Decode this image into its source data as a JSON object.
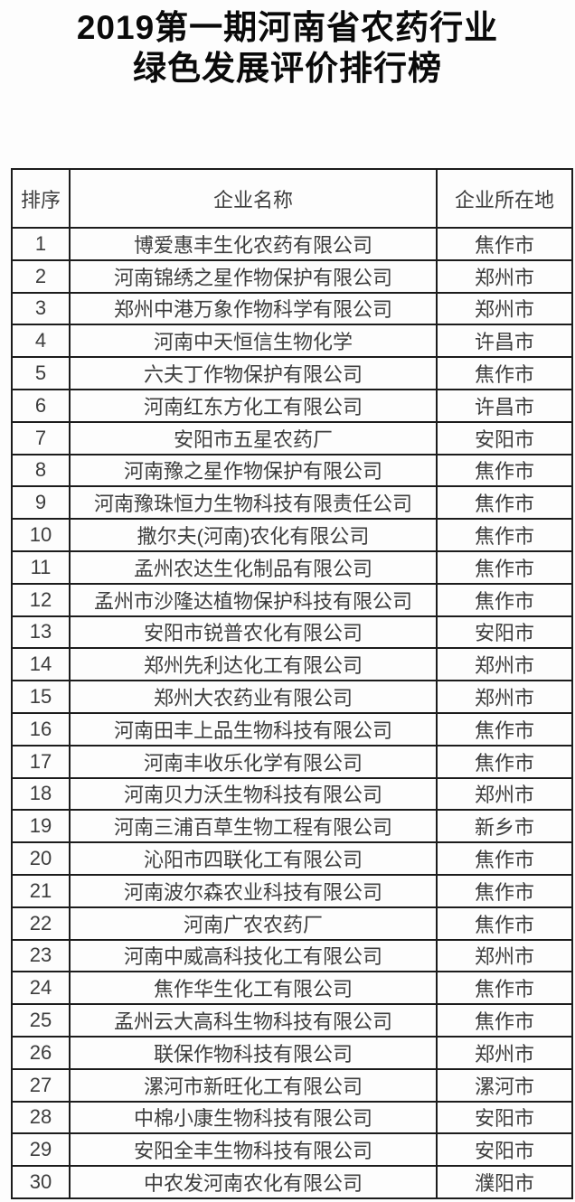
{
  "page": {
    "title_line1": "2019第一期河南省农药行业",
    "title_line2": "绿色发展评价排行榜"
  },
  "colors": {
    "border": "#1c1c1c",
    "text": "#3d3d3d",
    "title": "#0a0a0a",
    "background": "#fdfdfd"
  },
  "table": {
    "columns": [
      "排序",
      "企业名称",
      "企业所在地"
    ],
    "rows": [
      {
        "rank": "1",
        "name": "博爱惠丰生化农药有限公司",
        "city": "焦作市"
      },
      {
        "rank": "2",
        "name": "河南锦绣之星作物保护有限公司",
        "city": "郑州市"
      },
      {
        "rank": "3",
        "name": "郑州中港万象作物科学有限公司",
        "city": "郑州市"
      },
      {
        "rank": "4",
        "name": "河南中天恒信生物化学",
        "city": "许昌市"
      },
      {
        "rank": "5",
        "name": "六夫丁作物保护有限公司",
        "city": "焦作市"
      },
      {
        "rank": "6",
        "name": "河南红东方化工有限公司",
        "city": "许昌市"
      },
      {
        "rank": "7",
        "name": "安阳市五星农药厂",
        "city": "安阳市"
      },
      {
        "rank": "8",
        "name": "河南豫之星作物保护有限公司",
        "city": "焦作市"
      },
      {
        "rank": "9",
        "name": "河南豫珠恒力生物科技有限责任公司",
        "city": "焦作市"
      },
      {
        "rank": "10",
        "name": "撒尔夫(河南)农化有限公司",
        "city": "焦作市"
      },
      {
        "rank": "11",
        "name": "孟州农达生化制品有限公司",
        "city": "焦作市"
      },
      {
        "rank": "12",
        "name": "孟州市沙隆达植物保护科技有限公司",
        "city": "焦作市"
      },
      {
        "rank": "13",
        "name": "安阳市锐普农化有限公司",
        "city": "安阳市"
      },
      {
        "rank": "14",
        "name": "郑州先利达化工有限公司",
        "city": "郑州市"
      },
      {
        "rank": "15",
        "name": "郑州大农药业有限公司",
        "city": "郑州市"
      },
      {
        "rank": "16",
        "name": "河南田丰上品生物科技有限公司",
        "city": "焦作市"
      },
      {
        "rank": "17",
        "name": "河南丰收乐化学有限公司",
        "city": "焦作市"
      },
      {
        "rank": "18",
        "name": "河南贝力沃生物科技有限公司",
        "city": "郑州市"
      },
      {
        "rank": "19",
        "name": "河南三浦百草生物工程有限公司",
        "city": "新乡市"
      },
      {
        "rank": "20",
        "name": "沁阳市四联化工有限公司",
        "city": "焦作市"
      },
      {
        "rank": "21",
        "name": "河南波尔森农业科技有限公司",
        "city": "焦作市"
      },
      {
        "rank": "22",
        "name": "河南广农农药厂",
        "city": "焦作市"
      },
      {
        "rank": "23",
        "name": "河南中威高科技化工有限公司",
        "city": "郑州市"
      },
      {
        "rank": "24",
        "name": "焦作华生化工有限公司",
        "city": "焦作市"
      },
      {
        "rank": "25",
        "name": "孟州云大高科生物科技有限公司",
        "city": "焦作市"
      },
      {
        "rank": "26",
        "name": "联保作物科技有限公司",
        "city": "郑州市"
      },
      {
        "rank": "27",
        "name": "漯河市新旺化工有限公司",
        "city": "漯河市"
      },
      {
        "rank": "28",
        "name": "中棉小康生物科技有限公司",
        "city": "安阳市"
      },
      {
        "rank": "29",
        "name": "安阳全丰生物科技有限公司",
        "city": "安阳市"
      },
      {
        "rank": "30",
        "name": "中农发河南农化有限公司",
        "city": "濮阳市"
      }
    ]
  }
}
